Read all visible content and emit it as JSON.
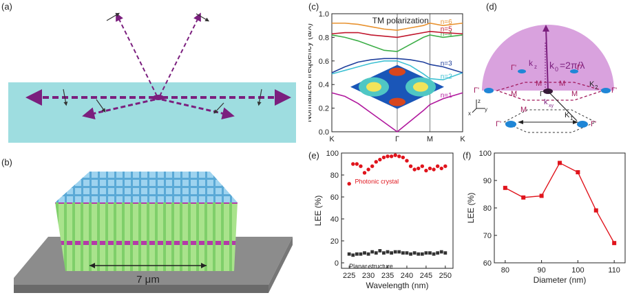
{
  "panels": {
    "a": {
      "label": "(a)"
    },
    "b": {
      "label": "(b)",
      "scale_text": "7 μm"
    },
    "c": {
      "label": "(c)"
    },
    "d": {
      "label": "(d)"
    },
    "e": {
      "label": "(e)"
    },
    "f": {
      "label": "(f)"
    }
  },
  "colors": {
    "substrate": "#9edde0",
    "purple": "#7b1f7e",
    "lavender": "#d9a2de",
    "blue_spot": "#1f86d6",
    "red": "#e0141c",
    "dark": "#333333"
  },
  "chart_data": [
    {
      "type": "line",
      "panel": "c",
      "title": "TM polarization",
      "xlabel": "",
      "ylabel": "Normalized frequency (a/λ)",
      "ylim": [
        0.0,
        1.0
      ],
      "yticks": [
        "0.0",
        "0.2",
        "0.4",
        "0.6",
        "0.8",
        "1.0"
      ],
      "x_ticks": [
        {
          "label": "K",
          "x": 0.0
        },
        {
          "label": "Γ",
          "x": 1.0
        },
        {
          "label": "M",
          "x": 1.5
        },
        {
          "label": "K",
          "x": 2.0
        }
      ],
      "xlim": [
        0.0,
        2.0
      ],
      "series": [
        {
          "name": "n=1",
          "color": "#b0179d",
          "x": [
            0,
            0.2,
            0.4,
            0.6,
            0.8,
            1.0,
            1.2,
            1.4,
            1.5,
            1.7,
            2.0
          ],
          "y": [
            0.33,
            0.3,
            0.24,
            0.16,
            0.08,
            0.0,
            0.09,
            0.18,
            0.23,
            0.28,
            0.33
          ]
        },
        {
          "name": "n=2",
          "color": "#3ec1d3",
          "x": [
            0,
            0.2,
            0.4,
            0.6,
            0.8,
            1.0,
            1.2,
            1.4,
            1.5,
            1.7,
            2.0
          ],
          "y": [
            0.49,
            0.52,
            0.55,
            0.58,
            0.6,
            0.6,
            0.56,
            0.49,
            0.45,
            0.44,
            0.5
          ]
        },
        {
          "name": "n=3",
          "color": "#1f3f9c",
          "x": [
            0,
            0.2,
            0.4,
            0.6,
            0.8,
            1.0,
            1.2,
            1.4,
            1.5,
            1.7,
            2.0
          ],
          "y": [
            0.5,
            0.55,
            0.59,
            0.61,
            0.62,
            0.62,
            0.61,
            0.59,
            0.57,
            0.55,
            0.5
          ]
        },
        {
          "name": "n=4",
          "color": "#3cae47",
          "x": [
            0,
            0.2,
            0.4,
            0.6,
            0.8,
            1.0,
            1.2,
            1.4,
            1.5,
            1.7,
            2.0
          ],
          "y": [
            0.82,
            0.8,
            0.77,
            0.73,
            0.69,
            0.68,
            0.74,
            0.8,
            0.82,
            0.8,
            0.82
          ]
        },
        {
          "name": "n=5",
          "color": "#c0152b",
          "x": [
            0,
            0.2,
            0.4,
            0.6,
            0.8,
            1.0,
            1.2,
            1.4,
            1.5,
            1.7,
            2.0
          ],
          "y": [
            0.83,
            0.84,
            0.84,
            0.82,
            0.81,
            0.8,
            0.82,
            0.84,
            0.85,
            0.84,
            0.83
          ]
        },
        {
          "name": "n=6",
          "color": "#e8912e",
          "x": [
            0,
            0.2,
            0.4,
            0.6,
            0.8,
            1.0,
            1.2,
            1.4,
            1.5,
            1.7,
            2.0
          ],
          "y": [
            0.92,
            0.92,
            0.91,
            0.89,
            0.87,
            0.86,
            0.88,
            0.9,
            0.92,
            0.9,
            0.92
          ]
        }
      ]
    },
    {
      "type": "scatter",
      "panel": "e",
      "xlabel": "Wavelength (nm)",
      "ylabel": "LEE (%)",
      "xlim": [
        223,
        252
      ],
      "ylim": [
        -5,
        100
      ],
      "xticks": [
        225,
        230,
        235,
        240,
        245,
        250
      ],
      "yticks": [
        0,
        20,
        40,
        60,
        80,
        100
      ],
      "series": [
        {
          "name": "Photonic crystal",
          "color": "#e0141c",
          "marker": "circle",
          "x": [
            225,
            226,
            227,
            228,
            229,
            230,
            231,
            232,
            233,
            234,
            235,
            236,
            237,
            238,
            239,
            240,
            241,
            242,
            243,
            244,
            245,
            246,
            247,
            248,
            249,
            250
          ],
          "y": [
            72,
            90,
            90,
            88,
            82,
            85,
            88,
            92,
            94,
            96,
            97,
            97,
            98,
            97,
            96,
            93,
            88,
            85,
            86,
            88,
            84,
            86,
            85,
            88,
            86,
            88
          ]
        },
        {
          "name": "Planar structure",
          "color": "#333333",
          "marker": "square",
          "x": [
            225,
            226,
            227,
            228,
            229,
            230,
            231,
            232,
            233,
            234,
            235,
            236,
            237,
            238,
            239,
            240,
            241,
            242,
            243,
            244,
            245,
            246,
            247,
            248,
            249,
            250
          ],
          "y": [
            8,
            7,
            8,
            8,
            9,
            8,
            10,
            9,
            11,
            9,
            10,
            9,
            10,
            10,
            9,
            9,
            8,
            9,
            8,
            8,
            9,
            9,
            8,
            9,
            10,
            9
          ]
        }
      ]
    },
    {
      "type": "line",
      "panel": "f",
      "xlabel": "Diameter (nm)",
      "ylabel": "LEE (%)",
      "xlim": [
        77,
        113
      ],
      "ylim": [
        60,
        100
      ],
      "xticks": [
        80,
        90,
        100,
        110
      ],
      "yticks": [
        60,
        70,
        80,
        90,
        100
      ],
      "series": [
        {
          "name": "",
          "color": "#e0141c",
          "marker": "square",
          "x": [
            80,
            85,
            90,
            95,
            100,
            105,
            110
          ],
          "y": [
            87.3,
            83.8,
            84.4,
            96.4,
            93.0,
            79.1,
            67.2
          ]
        }
      ]
    }
  ]
}
